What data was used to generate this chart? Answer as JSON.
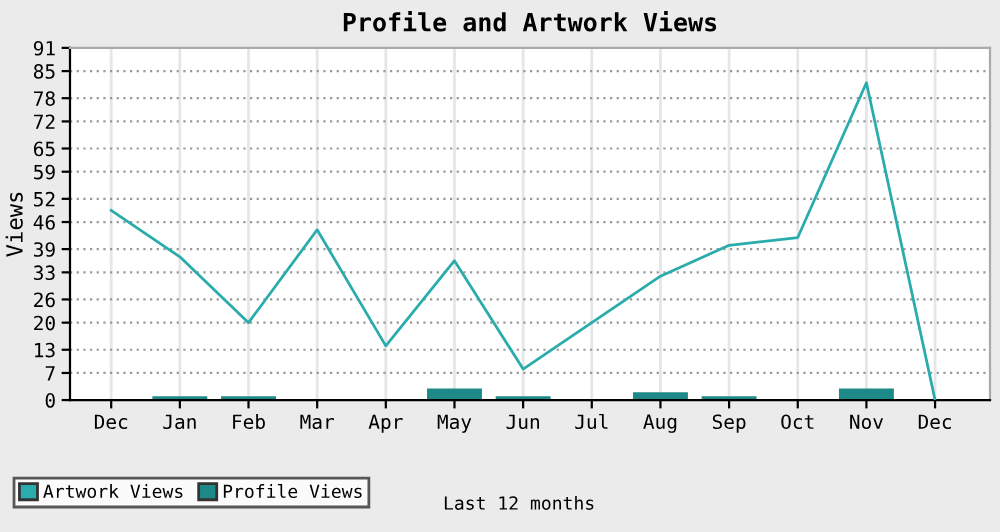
{
  "chart_data": {
    "type": "bar",
    "title": "Profile and Artwork Views",
    "ylabel": "Views",
    "categories": [
      "Dec",
      "Jan",
      "Feb",
      "Mar",
      "Apr",
      "May",
      "Jun",
      "Jul",
      "Aug",
      "Sep",
      "Oct",
      "Nov",
      "Dec"
    ],
    "series": [
      {
        "name": "Artwork Views",
        "type": "line",
        "color": "#2aacac",
        "values": [
          49,
          37,
          20,
          44,
          14,
          36,
          8,
          20,
          32,
          40,
          42,
          82,
          0
        ]
      },
      {
        "name": "Profile Views",
        "color": "#1e8a87",
        "values": [
          0,
          1,
          1,
          0,
          0,
          3,
          1,
          0,
          2,
          1,
          0,
          3,
          0
        ]
      }
    ],
    "ylim": [
      0,
      91
    ],
    "yticks": [
      0,
      7,
      13,
      20,
      26,
      33,
      39,
      46,
      52,
      59,
      65,
      72,
      78,
      85,
      91
    ],
    "grid": true,
    "legend": "bottom left",
    "annotations": [
      "Last 12 months"
    ]
  }
}
